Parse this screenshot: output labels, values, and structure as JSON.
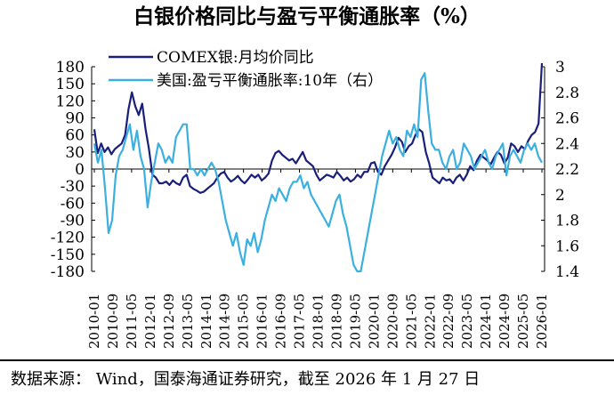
{
  "chart_data": {
    "type": "line",
    "title": "白银价格同比与盈亏平衡通胀率（%）",
    "source": "数据来源： Wind，国泰海通证券研究，截至 2026 年 1 月 27 日",
    "x_tick_labels": [
      "2010-01",
      "2010-09",
      "2011-05",
      "2012-01",
      "2012-09",
      "2013-05",
      "2014-01",
      "2014-09",
      "2015-05",
      "2016-01",
      "2016-09",
      "2017-05",
      "2018-01",
      "2018-09",
      "2019-05",
      "2020-01",
      "2020-09",
      "2021-05",
      "2022-01",
      "2022-09",
      "2023-05",
      "2024-01",
      "2024-09",
      "2025-05",
      "2026-01"
    ],
    "y_left": {
      "ylim": [
        -180,
        180
      ],
      "ticks": [
        -180,
        -150,
        -120,
        -90,
        -60,
        -30,
        0,
        30,
        60,
        90,
        120,
        150,
        180
      ]
    },
    "y_right": {
      "ylim": [
        1.4,
        3.0
      ],
      "ticks": [
        "1.4",
        "1.6",
        "1.8",
        "2",
        "2.2",
        "2.4",
        "2.6",
        "2.8",
        "3"
      ]
    },
    "legend_position": "top-left",
    "series": [
      {
        "name": "COMEX银:月均价同比",
        "axis": "left",
        "color": "#1a1f7a",
        "values": [
          70,
          28,
          45,
          30,
          38,
          26,
          35,
          40,
          45,
          60,
          105,
          135,
          110,
          95,
          115,
          70,
          35,
          -10,
          -15,
          -25,
          -25,
          -22,
          -28,
          -20,
          -25,
          -28,
          -15,
          -10,
          -30,
          -35,
          -38,
          -42,
          -40,
          -35,
          -30,
          -25,
          -15,
          -8,
          -5,
          -15,
          -22,
          -18,
          -12,
          -20,
          -25,
          -18,
          -10,
          -15,
          -10,
          -20,
          -15,
          -8,
          15,
          28,
          32,
          25,
          20,
          15,
          18,
          10,
          20,
          30,
          15,
          10,
          5,
          -10,
          -20,
          -15,
          -10,
          -12,
          -15,
          -5,
          -12,
          -20,
          -15,
          -22,
          -18,
          -10,
          -15,
          -5,
          -5,
          10,
          12,
          -5,
          -10,
          5,
          15,
          25,
          38,
          55,
          48,
          30,
          40,
          45,
          60,
          70,
          65,
          30,
          10,
          -15,
          -20,
          -25,
          -15,
          -20,
          -18,
          -25,
          -15,
          -10,
          -20,
          -10,
          5,
          -2,
          15,
          25,
          20,
          15,
          8,
          20,
          30,
          25,
          10,
          20,
          45,
          40,
          30,
          40,
          35,
          50,
          60,
          65,
          80,
          190
        ]
      },
      {
        "name": "美国:盈亏平衡通胀率:10年（右）",
        "axis": "right",
        "color": "#3bb0e0",
        "values": [
          2.4,
          2.25,
          2.35,
          2.05,
          1.7,
          1.8,
          2.15,
          2.3,
          2.35,
          2.45,
          2.55,
          2.35,
          2.5,
          2.3,
          2.2,
          1.9,
          2.1,
          2.25,
          2.4,
          2.35,
          2.25,
          2.3,
          2.25,
          2.45,
          2.5,
          2.55,
          2.55,
          2.2,
          2.2,
          2.15,
          2.2,
          2.15,
          2.2,
          2.25,
          2.2,
          2.1,
          1.95,
          1.8,
          1.7,
          1.6,
          1.7,
          1.55,
          1.45,
          1.65,
          1.6,
          1.7,
          1.55,
          1.65,
          1.8,
          1.9,
          2.0,
          1.95,
          2.05,
          2.0,
          1.95,
          2.05,
          2.1,
          2.1,
          2.15,
          2.05,
          2.1,
          2.0,
          1.95,
          1.9,
          1.85,
          1.8,
          1.75,
          1.85,
          1.95,
          2.0,
          1.85,
          1.75,
          1.6,
          1.45,
          1.15,
          1.4,
          1.55,
          1.7,
          1.85,
          2.0,
          2.15,
          2.3,
          2.4,
          2.5,
          2.4,
          2.45,
          2.35,
          2.3,
          2.5,
          2.45,
          2.55,
          2.45,
          2.9,
          2.95,
          2.65,
          2.4,
          2.35,
          2.35,
          2.25,
          2.2,
          2.3,
          2.35,
          2.2,
          2.25,
          2.4,
          2.35,
          2.3,
          2.2,
          2.25,
          2.3,
          2.35,
          2.25,
          2.2,
          2.3,
          2.35,
          2.4,
          2.15,
          2.3,
          2.35,
          2.3,
          2.25,
          2.35,
          2.4,
          2.35,
          2.4,
          2.3,
          2.25
        ]
      }
    ]
  }
}
